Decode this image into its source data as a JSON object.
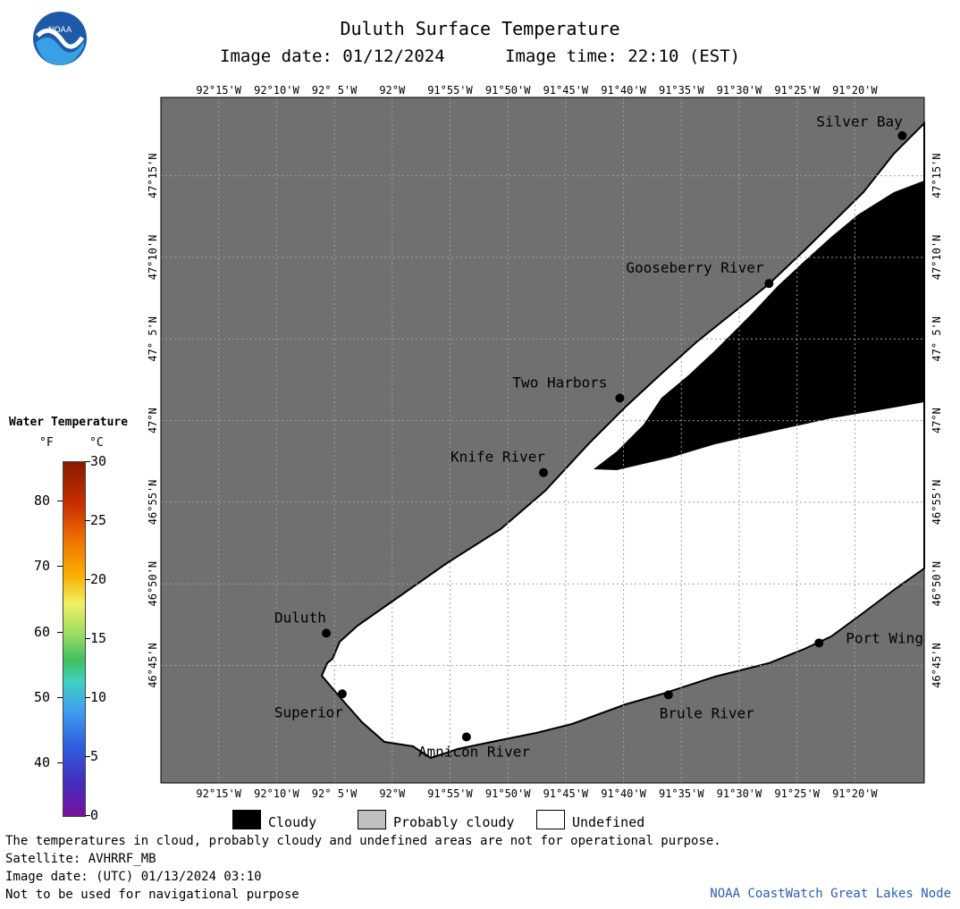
{
  "header": {
    "title": "Duluth Surface Temperature",
    "image_date": "Image date: 01/12/2024",
    "image_time": "Image time: 22:10 (EST)",
    "logo_text": "NOAA"
  },
  "map": {
    "lon_labels": [
      "92°15'W",
      "92°10'W",
      "92° 5'W",
      "92°W",
      "91°55'W",
      "91°50'W",
      "91°45'W",
      "91°40'W",
      "91°35'W",
      "91°30'W",
      "91°25'W",
      "91°20'W"
    ],
    "lat_labels": [
      "47°15'N",
      "47°10'N",
      "47° 5'N",
      "47°N",
      "46°55'N",
      "46°50'N",
      "46°45'N"
    ],
    "places": [
      {
        "name": "Silver Bay",
        "lon": -91.265,
        "lat": 47.291
      },
      {
        "name": "Gooseberry River",
        "lon": -91.457,
        "lat": 47.14
      },
      {
        "name": "Two Harbors",
        "lon": -91.672,
        "lat": 47.023
      },
      {
        "name": "Knife River",
        "lon": -91.782,
        "lat": 46.947
      },
      {
        "name": "Duluth",
        "lon": -92.095,
        "lat": 46.783
      },
      {
        "name": "Superior",
        "lon": -92.072,
        "lat": 46.721
      },
      {
        "name": "Amnicon River",
        "lon": -91.893,
        "lat": 46.677
      },
      {
        "name": "Brule River",
        "lon": -91.602,
        "lat": 46.72
      },
      {
        "name": "Port Wing",
        "lon": -91.385,
        "lat": 46.773
      }
    ],
    "colors": {
      "land": "#707070",
      "cloudy": "#000000",
      "undefined": "#ffffff",
      "grid": "#a0a0a0"
    }
  },
  "legend": {
    "title": "Water Temperature",
    "fahrenheit_unit": "°F",
    "celsius_unit": "°C",
    "fahrenheit_ticks": [
      "80",
      "70",
      "60",
      "50",
      "40"
    ],
    "celsius_ticks": [
      "30",
      "25",
      "20",
      "15",
      "10",
      "5",
      "0"
    ],
    "categories": [
      "Cloudy",
      "Probably cloudy",
      "Undefined"
    ],
    "category_colors": [
      "#000000",
      "#c0c0c0",
      "#ffffff"
    ]
  },
  "footer": {
    "line1": "The temperatures in cloud, probably cloudy and undefined areas are not for operational purpose.",
    "line2": "Satellite: AVHRRF_MB",
    "line3": "Image date: (UTC) 01/13/2024  03:10",
    "line4": "Not to be used for navigational purpose",
    "credit": "NOAA CoastWatch Great Lakes Node"
  }
}
